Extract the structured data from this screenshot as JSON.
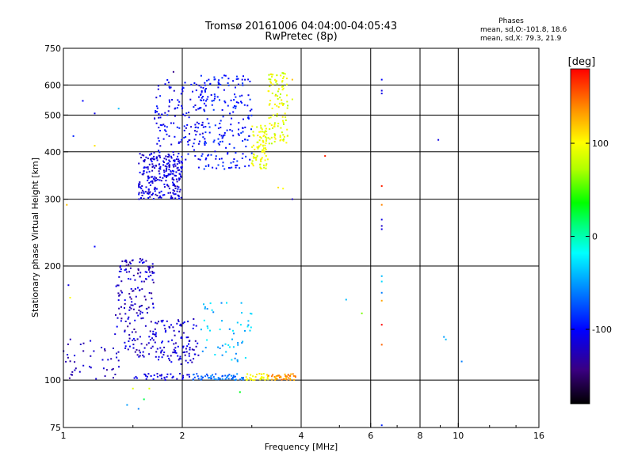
{
  "chart_data": {
    "type": "scatter",
    "title_line1": "Tromsø 20161006 04:04:00-04:05:43",
    "title_line2": "RwPretec (8p)",
    "xlabel": "Frequency [MHz]",
    "ylabel": "Stationary phase Virtual Height [km]",
    "x_scale": "log",
    "y_scale": "log",
    "xlim": [
      1,
      16
    ],
    "ylim": [
      75,
      750
    ],
    "x_ticks": [
      1,
      2,
      4,
      6,
      8,
      10,
      16
    ],
    "x_minor_ticks": [
      1.5,
      3,
      5,
      7,
      9,
      12,
      14
    ],
    "y_ticks": [
      75,
      100,
      200,
      300,
      400,
      500,
      600,
      750
    ],
    "x_grid": [
      2,
      4,
      6,
      8,
      10
    ],
    "y_grid": [
      100,
      200,
      300,
      400,
      500,
      600
    ],
    "colorbar": {
      "unit": "[deg]",
      "range": [
        -180,
        180
      ],
      "ticks": [
        100,
        0,
        -100
      ]
    },
    "phases": {
      "title": "Phases",
      "o_line": "mean, sd,O:-101.8, 18.6",
      "x_line": "mean, sd,X: 79.3, 21.9"
    },
    "series": [
      {
        "clusters": [
          {
            "f": [
              1.55,
              2.0
            ],
            "h": [
              300,
              400
            ],
            "ph": [
              -130,
              -95
            ],
            "n": 260
          },
          {
            "f": [
              1.7,
              2.3
            ],
            "h": [
              380,
              620
            ],
            "ph": [
              -120,
              -90
            ],
            "n": 140
          },
          {
            "f": [
              2.2,
              3.0
            ],
            "h": [
              360,
              640
            ],
            "ph": [
              -110,
              -80
            ],
            "n": 200
          },
          {
            "f": [
              3.0,
              3.3
            ],
            "h": [
              360,
              470
            ],
            "ph": [
              80,
              110
            ],
            "n": 90
          },
          {
            "f": [
              3.3,
              3.7
            ],
            "h": [
              420,
              650
            ],
            "ph": [
              70,
              110
            ],
            "n": 110
          },
          {
            "f": [
              1.35,
              1.7
            ],
            "h": [
              115,
              210
            ],
            "ph": [
              -140,
              -100
            ],
            "n": 180
          },
          {
            "f": [
              1.7,
              2.2
            ],
            "h": [
              110,
              145
            ],
            "ph": [
              -130,
              -100
            ],
            "n": 110
          },
          {
            "f": [
              1.0,
              1.4
            ],
            "h": [
              100,
              130
            ],
            "ph": [
              -140,
              -110
            ],
            "n": 45
          },
          {
            "f": [
              2.2,
              3.0
            ],
            "h": [
              112,
              160
            ],
            "ph": [
              -60,
              -20
            ],
            "n": 55
          },
          {
            "f": [
              1.5,
              2.1
            ],
            "h": [
              100,
              104
            ],
            "ph": [
              -120,
              -100
            ],
            "n": 35
          },
          {
            "f": [
              2.1,
              2.9
            ],
            "h": [
              100,
              104
            ],
            "ph": [
              -80,
              -50
            ],
            "n": 60
          },
          {
            "f": [
              2.9,
              3.3
            ],
            "h": [
              100,
              104
            ],
            "ph": [
              90,
              110
            ],
            "n": 30
          },
          {
            "f": [
              3.3,
              3.9
            ],
            "h": [
              100,
              104
            ],
            "ph": [
              120,
              150
            ],
            "n": 40
          }
        ]
      }
    ],
    "isolated_points": [
      {
        "x": 1.06,
        "y": 440,
        "ph": -90
      },
      {
        "x": 1.12,
        "y": 545,
        "ph": -100
      },
      {
        "x": 1.2,
        "y": 505,
        "ph": -110
      },
      {
        "x": 1.38,
        "y": 520,
        "ph": -40
      },
      {
        "x": 1.2,
        "y": 415,
        "ph": 110
      },
      {
        "x": 1.02,
        "y": 290,
        "ph": 120
      },
      {
        "x": 1.2,
        "y": 225,
        "ph": -100
      },
      {
        "x": 1.03,
        "y": 178,
        "ph": -110
      },
      {
        "x": 1.04,
        "y": 165,
        "ph": 100
      },
      {
        "x": 1.5,
        "y": 95,
        "ph": 90
      },
      {
        "x": 1.45,
        "y": 86,
        "ph": -50
      },
      {
        "x": 1.55,
        "y": 84,
        "ph": -60
      },
      {
        "x": 1.65,
        "y": 95,
        "ph": 90
      },
      {
        "x": 1.6,
        "y": 89,
        "ph": 20
      },
      {
        "x": 2.8,
        "y": 93,
        "ph": 30
      },
      {
        "x": 1.9,
        "y": 650,
        "ph": -140
      },
      {
        "x": 3.8,
        "y": 620,
        "ph": 120
      },
      {
        "x": 3.8,
        "y": 550,
        "ph": 90
      },
      {
        "x": 3.6,
        "y": 320,
        "ph": 100
      },
      {
        "x": 3.5,
        "y": 322,
        "ph": 110
      },
      {
        "x": 3.8,
        "y": 300,
        "ph": -120
      },
      {
        "x": 4.6,
        "y": 390,
        "ph": 170
      },
      {
        "x": 6.4,
        "y": 620,
        "ph": -100
      },
      {
        "x": 6.4,
        "y": 580,
        "ph": -110
      },
      {
        "x": 6.4,
        "y": 570,
        "ph": -110
      },
      {
        "x": 6.4,
        "y": 325,
        "ph": 170
      },
      {
        "x": 6.4,
        "y": 290,
        "ph": 140
      },
      {
        "x": 6.4,
        "y": 265,
        "ph": -110
      },
      {
        "x": 6.4,
        "y": 255,
        "ph": -120
      },
      {
        "x": 6.4,
        "y": 250,
        "ph": -110
      },
      {
        "x": 6.4,
        "y": 188,
        "ph": -40
      },
      {
        "x": 6.4,
        "y": 182,
        "ph": -30
      },
      {
        "x": 6.4,
        "y": 170,
        "ph": -60
      },
      {
        "x": 6.4,
        "y": 162,
        "ph": 130
      },
      {
        "x": 6.4,
        "y": 140,
        "ph": 180
      },
      {
        "x": 6.4,
        "y": 124,
        "ph": 150
      },
      {
        "x": 6.4,
        "y": 76,
        "ph": -90
      },
      {
        "x": 5.2,
        "y": 163,
        "ph": -40
      },
      {
        "x": 5.7,
        "y": 150,
        "ph": 60
      },
      {
        "x": 9.2,
        "y": 130,
        "ph": -50
      },
      {
        "x": 9.3,
        "y": 128,
        "ph": -40
      },
      {
        "x": 10.2,
        "y": 112,
        "ph": -60
      },
      {
        "x": 8.9,
        "y": 430,
        "ph": -110
      }
    ]
  }
}
